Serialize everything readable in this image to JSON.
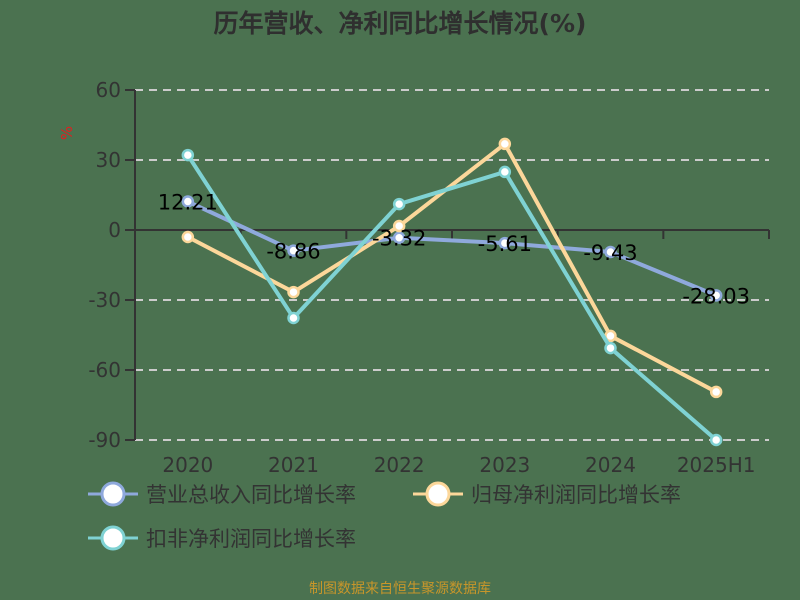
{
  "title": "历年营收、净利同比增长情况(%)",
  "source": "制图数据来自恒生聚源数据库",
  "colors": {
    "background": "#4b7250",
    "revenue": "#8fa9dc",
    "net_profit": "#fcd79a",
    "non_gaap_profit": "#7fd2d3",
    "grid": "#cccccc",
    "axis": "#333333",
    "unit": "#e02020",
    "source": "#c8962a"
  },
  "chart_data": {
    "type": "line",
    "title": "历年营收、净利同比增长情况(%)",
    "xlabel": "",
    "ylabel": "%",
    "categories": [
      "2020",
      "2021",
      "2022",
      "2023",
      "2024",
      "2025H1"
    ],
    "ylim": [
      -90,
      60
    ],
    "yticks": [
      60,
      30,
      0,
      -30,
      -60,
      -90
    ],
    "grid": true,
    "legend_position": "bottom",
    "series": [
      {
        "name": "营业总收入同比增长率",
        "values": [
          12.21,
          -8.86,
          -3.32,
          -5.61,
          -9.43,
          -28.03
        ],
        "labels_shown": true
      },
      {
        "name": "归母净利润同比增长率",
        "values": [
          -3.0,
          -26.6,
          1.7,
          36.9,
          -45.4,
          -69.4
        ],
        "labels_shown": false
      },
      {
        "name": "扣非净利润同比增长率",
        "values": [
          32.1,
          -37.7,
          11.1,
          24.9,
          -50.6,
          -90.0
        ],
        "labels_shown": false
      }
    ]
  },
  "axis": {
    "y_unit": "%",
    "y_tick_labels": [
      "60",
      "30",
      "0",
      "-30",
      "-60",
      "-90"
    ],
    "x_tick_labels": [
      "2020",
      "2021",
      "2022",
      "2023",
      "2024",
      "2025H1"
    ]
  },
  "point_labels": [
    "12.21",
    "-8.86",
    "-3.32",
    "-5.61",
    "-9.43",
    "-28.03"
  ],
  "legend": [
    {
      "label": "营业总收入同比增长率"
    },
    {
      "label": "归母净利润同比增长率"
    },
    {
      "label": "扣非净利润同比增长率"
    }
  ]
}
